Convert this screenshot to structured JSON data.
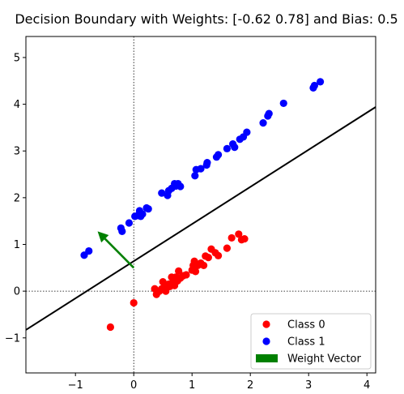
{
  "chart_data": {
    "type": "scatter",
    "title": "Decision Boundary with Weights: [-0.62  0.78] and Bias: 0.5",
    "xlabel": "",
    "ylabel": "",
    "xlim": [
      -1.85,
      4.15
    ],
    "ylim": [
      -1.75,
      5.45
    ],
    "xticks": [
      -1,
      0,
      1,
      2,
      3,
      4
    ],
    "yticks": [
      -1,
      0,
      1,
      2,
      3,
      4,
      5
    ],
    "grid": false,
    "legend_position": "lower-right",
    "reference_lines": {
      "x": 0,
      "y": 0,
      "style": "dotted"
    },
    "weights": [
      -0.62,
      0.78
    ],
    "bias": 0.5,
    "decision_boundary": {
      "slope": 0.795,
      "intercept": 0.641
    },
    "weight_vector": {
      "start": [
        0,
        0.5
      ],
      "end": [
        -0.62,
        1.28
      ]
    },
    "series": [
      {
        "name": "Class 0",
        "color": "#ff0000",
        "points": [
          [
            -0.4,
            -0.77
          ],
          [
            0.0,
            -0.25
          ],
          [
            0.36,
            0.05
          ],
          [
            0.39,
            -0.07
          ],
          [
            0.44,
            0.0
          ],
          [
            0.48,
            0.05
          ],
          [
            0.5,
            0.2
          ],
          [
            0.52,
            0.08
          ],
          [
            0.55,
            0.0
          ],
          [
            0.57,
            0.12
          ],
          [
            0.6,
            0.15
          ],
          [
            0.62,
            0.1
          ],
          [
            0.65,
            0.3
          ],
          [
            0.68,
            0.22
          ],
          [
            0.7,
            0.12
          ],
          [
            0.72,
            0.3
          ],
          [
            0.75,
            0.22
          ],
          [
            0.77,
            0.43
          ],
          [
            0.8,
            0.28
          ],
          [
            0.85,
            0.33
          ],
          [
            0.9,
            0.35
          ],
          [
            1.0,
            0.45
          ],
          [
            1.02,
            0.55
          ],
          [
            1.04,
            0.64
          ],
          [
            1.06,
            0.42
          ],
          [
            1.1,
            0.55
          ],
          [
            1.15,
            0.6
          ],
          [
            1.2,
            0.55
          ],
          [
            1.23,
            0.75
          ],
          [
            1.28,
            0.72
          ],
          [
            1.33,
            0.9
          ],
          [
            1.4,
            0.82
          ],
          [
            1.45,
            0.76
          ],
          [
            1.6,
            0.92
          ],
          [
            1.68,
            1.14
          ],
          [
            1.8,
            1.22
          ],
          [
            1.85,
            1.1
          ],
          [
            1.9,
            1.12
          ]
        ]
      },
      {
        "name": "Class 1",
        "color": "#0000ff",
        "points": [
          [
            -0.85,
            0.77
          ],
          [
            -0.77,
            0.86
          ],
          [
            -0.22,
            1.35
          ],
          [
            -0.2,
            1.28
          ],
          [
            -0.08,
            1.46
          ],
          [
            0.02,
            1.6
          ],
          [
            0.07,
            1.62
          ],
          [
            0.1,
            1.72
          ],
          [
            0.12,
            1.6
          ],
          [
            0.15,
            1.65
          ],
          [
            0.22,
            1.78
          ],
          [
            0.25,
            1.76
          ],
          [
            0.48,
            2.1
          ],
          [
            0.58,
            2.05
          ],
          [
            0.6,
            2.15
          ],
          [
            0.65,
            2.2
          ],
          [
            0.7,
            2.3
          ],
          [
            0.72,
            2.25
          ],
          [
            0.76,
            2.3
          ],
          [
            0.8,
            2.24
          ],
          [
            1.05,
            2.47
          ],
          [
            1.07,
            2.6
          ],
          [
            1.15,
            2.62
          ],
          [
            1.25,
            2.7
          ],
          [
            1.26,
            2.75
          ],
          [
            1.42,
            2.87
          ],
          [
            1.45,
            2.92
          ],
          [
            1.6,
            3.05
          ],
          [
            1.7,
            3.15
          ],
          [
            1.73,
            3.08
          ],
          [
            1.82,
            3.25
          ],
          [
            1.88,
            3.3
          ],
          [
            1.94,
            3.4
          ],
          [
            2.22,
            3.6
          ],
          [
            2.3,
            3.75
          ],
          [
            2.32,
            3.8
          ],
          [
            2.57,
            4.02
          ],
          [
            3.08,
            4.35
          ],
          [
            3.1,
            4.4
          ],
          [
            3.2,
            4.48
          ]
        ]
      }
    ],
    "legend": [
      {
        "label": "Class 0",
        "marker": "circle",
        "color": "#ff0000"
      },
      {
        "label": "Class 1",
        "marker": "circle",
        "color": "#0000ff"
      },
      {
        "label": "Weight Vector",
        "marker": "rect",
        "color": "#008000"
      }
    ]
  }
}
